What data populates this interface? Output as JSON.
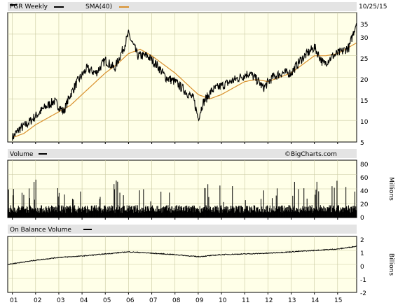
{
  "price_panel": {
    "series_label": "PGR Weekly",
    "sma_label": "SMA(40)",
    "date": "10/25/15",
    "y_ticks": [
      "35",
      "30",
      "25",
      "20",
      "15",
      "10",
      "5"
    ]
  },
  "volume_panel": {
    "label": "Volume",
    "watermark": "©BigCharts.com",
    "y_ticks": [
      "80",
      "60",
      "40",
      "20",
      "0"
    ],
    "unit_label": "Millions"
  },
  "obv_panel": {
    "label": "On Balance Volume",
    "y_ticks": [
      "2",
      "1",
      "0",
      "-1",
      "-2"
    ],
    "unit_label": "Billions"
  },
  "x_axis": {
    "labels": [
      "01",
      "02",
      "03",
      "04",
      "05",
      "06",
      "07",
      "08",
      "09",
      "10",
      "11",
      "12",
      "13",
      "14",
      "15"
    ]
  },
  "colors": {
    "price": "#000000",
    "sma": "#d9902c",
    "volume": "#000000",
    "obv": "#000000",
    "panel_bg": "#ffffe8",
    "header_bg": "#e4e4e4"
  },
  "chart_data": [
    {
      "type": "line",
      "series": [
        {
          "name": "PGR Weekly",
          "x": [
            2001.0,
            2001.3,
            2001.6,
            2002.0,
            2002.4,
            2002.8,
            2003.2,
            2003.5,
            2003.8,
            2004.2,
            2004.6,
            2005.0,
            2005.4,
            2005.8,
            2006.0,
            2006.4,
            2006.8,
            2007.2,
            2007.6,
            2008.0,
            2008.4,
            2008.8,
            2009.0,
            2009.2,
            2009.6,
            2010.0,
            2010.4,
            2010.8,
            2011.2,
            2011.6,
            2011.8,
            2012.2,
            2012.6,
            2013.0,
            2013.4,
            2013.8,
            2014.0,
            2014.4,
            2014.8,
            2015.2,
            2015.5,
            2015.82
          ],
          "values": [
            6,
            8,
            9,
            11,
            13,
            14.5,
            12,
            16,
            19,
            22,
            21,
            24,
            22,
            27,
            30,
            25,
            25,
            23,
            20,
            19,
            17,
            15,
            10.5,
            14,
            17,
            18,
            19,
            20,
            21,
            19,
            17.5,
            20,
            21,
            21,
            24,
            26,
            27,
            23,
            25,
            26,
            27,
            33
          ]
        },
        {
          "name": "SMA(40)",
          "x": [
            2001.0,
            2001.5,
            2002.0,
            2002.5,
            2003.0,
            2003.5,
            2004.0,
            2004.5,
            2005.0,
            2005.5,
            2006.0,
            2006.5,
            2007.0,
            2007.5,
            2008.0,
            2008.5,
            2009.0,
            2009.5,
            2010.0,
            2010.5,
            2011.0,
            2011.5,
            2012.0,
            2012.5,
            2013.0,
            2013.5,
            2014.0,
            2014.5,
            2015.0,
            2015.5,
            2015.82
          ],
          "values": [
            6,
            7,
            9,
            10.5,
            12,
            13.5,
            16,
            18.5,
            21,
            23,
            25.5,
            26.5,
            25,
            23,
            21,
            18.5,
            16,
            15,
            16,
            17.5,
            19,
            19.5,
            19,
            20,
            21,
            23,
            25,
            25,
            25.5,
            27,
            28
          ]
        }
      ],
      "ylim": [
        5,
        35
      ]
    },
    {
      "type": "bar",
      "title": "Volume",
      "ylabel": "Millions",
      "ylim": [
        0,
        80
      ],
      "x_start": 2000.8,
      "x_end": 2015.82,
      "typical_value": 12,
      "spike_values": [
        30,
        35,
        45,
        50,
        55
      ]
    },
    {
      "type": "line",
      "title": "On Balance Volume",
      "ylabel": "Billions",
      "ylim": [
        -2,
        2
      ],
      "series": [
        {
          "name": "On Balance Volume",
          "x": [
            2000.8,
            2002.0,
            2003.0,
            2004.0,
            2005.0,
            2006.0,
            2007.0,
            2008.0,
            2009.0,
            2010.0,
            2011.0,
            2012.0,
            2013.0,
            2014.0,
            2015.0,
            2015.82
          ],
          "values": [
            0.0,
            0.3,
            0.5,
            0.6,
            0.75,
            0.9,
            0.8,
            0.7,
            0.55,
            0.7,
            0.75,
            0.8,
            0.9,
            1.0,
            1.1,
            1.3
          ]
        }
      ]
    }
  ]
}
